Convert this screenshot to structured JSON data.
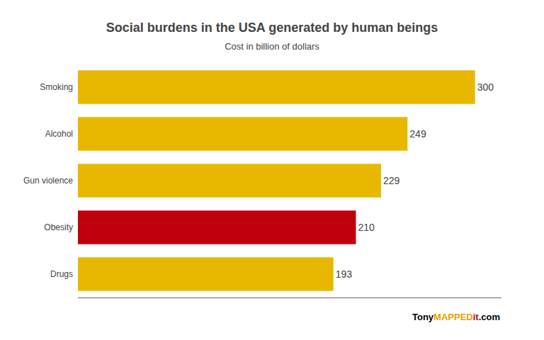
{
  "chart_data": {
    "type": "bar",
    "orientation": "horizontal",
    "title": "Social burdens in the USA generated by human beings",
    "subtitle": "Cost in billion of dollars",
    "categories": [
      "Smoking",
      "Alcohol",
      "Gun violence",
      "Obesity",
      "Drugs"
    ],
    "values": [
      300,
      249,
      229,
      210,
      193
    ],
    "colors": [
      "#E8B800",
      "#E8B800",
      "#E8B800",
      "#C0000C",
      "#E8B800"
    ],
    "xlim": [
      0,
      320
    ],
    "tick_labels": "y",
    "grid": false,
    "data_labels": true,
    "annotations": [
      {
        "text": "Tony",
        "color": "#000000"
      },
      {
        "text": "MAPPED",
        "color": "#E8A000"
      },
      {
        "text": "it",
        "color": "#C0000C"
      },
      {
        "text": ".com",
        "color": "#000000"
      }
    ]
  }
}
